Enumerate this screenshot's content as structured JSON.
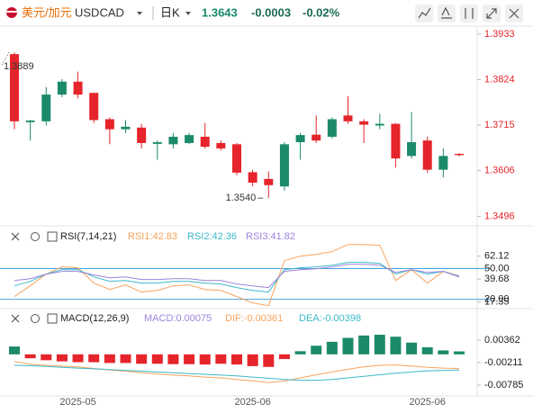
{
  "header": {
    "pair": "美元/加元",
    "symbol": "USDCAD",
    "interval": "日K",
    "price": "1.3643",
    "change": "-0.0003",
    "change_pct": "-0.02%"
  },
  "chart_data": [
    {
      "type": "candlestick",
      "categories": [
        null,
        null,
        null,
        null,
        "2025-05",
        null,
        null,
        null,
        null,
        null,
        null,
        null,
        null,
        null,
        null,
        "2025-06",
        null,
        null,
        null,
        null,
        null,
        null,
        null,
        null,
        null,
        null,
        "2025-06",
        null,
        null
      ],
      "open": [
        1.3885,
        1.3722,
        1.3724,
        1.3788,
        1.3819,
        1.3792,
        1.3729,
        1.3705,
        1.3709,
        1.367,
        1.3669,
        1.3672,
        1.3687,
        1.3672,
        1.3669,
        1.3602,
        1.3586,
        1.3568,
        1.3674,
        1.3692,
        1.3687,
        1.3738,
        1.3724,
        1.3714,
        1.3718,
        1.3641,
        1.3678,
        1.3608,
        1.3646
      ],
      "high": [
        1.3889,
        1.3727,
        1.3806,
        1.3825,
        1.3843,
        1.3793,
        1.3733,
        1.3727,
        1.3718,
        1.3678,
        1.3696,
        1.3696,
        1.372,
        1.3678,
        1.3672,
        1.3608,
        1.3604,
        1.3674,
        1.3696,
        1.3738,
        1.3733,
        1.3784,
        1.3729,
        1.3742,
        1.372,
        1.3746,
        1.3687,
        1.3659,
        1.3648
      ],
      "low": [
        1.3705,
        1.3678,
        1.3714,
        1.3782,
        1.3779,
        1.372,
        1.3669,
        1.3696,
        1.3659,
        1.3632,
        1.3659,
        1.3669,
        1.3659,
        1.3654,
        1.3595,
        1.3568,
        1.354,
        1.3558,
        1.3632,
        1.3672,
        1.3683,
        1.3718,
        1.3672,
        1.3705,
        1.3613,
        1.3635,
        1.3601,
        1.359,
        1.364
      ],
      "close": [
        1.3724,
        1.3726,
        1.3788,
        1.3819,
        1.3788,
        1.3727,
        1.3705,
        1.3711,
        1.3672,
        1.3674,
        1.3687,
        1.3691,
        1.3663,
        1.3659,
        1.3601,
        1.3577,
        1.3571,
        1.3669,
        1.3691,
        1.3678,
        1.3729,
        1.3724,
        1.3716,
        1.3718,
        1.3635,
        1.3674,
        1.3608,
        1.3641,
        1.3643
      ],
      "up_color": "#1b8a6b",
      "down_color": "#e5242b",
      "ylim": [
        1.348,
        1.395
      ],
      "yticks": [
        1.3933,
        1.3824,
        1.3715,
        1.3606,
        1.3496
      ],
      "max_label": "1.3889",
      "min_label": "1.3540"
    },
    {
      "type": "line",
      "title": "RSI(7,14,21)",
      "series": [
        {
          "name": "RSI1:42.83",
          "color": "#f7a35c",
          "values": [
            22.6,
            33.1,
            44.6,
            51.6,
            50.7,
            35.8,
            29.6,
            34.0,
            27.0,
            28.7,
            33.1,
            34.0,
            29.6,
            28.7,
            22.6,
            16.4,
            13.8,
            57.7,
            62.1,
            63.9,
            66.5,
            73.5,
            73.5,
            72.7,
            38.4,
            48.9,
            35.8,
            47.2,
            42.83
          ]
        },
        {
          "name": "RSI2:42.36",
          "color": "#3cb9c8",
          "values": [
            33.1,
            37.5,
            44.6,
            48.9,
            48.9,
            41.9,
            37.5,
            38.4,
            35.8,
            35.8,
            37.5,
            37.5,
            35.8,
            34.9,
            31.4,
            28.7,
            27.0,
            48.9,
            50.7,
            51.6,
            53.3,
            56.0,
            56.0,
            55.1,
            44.6,
            48.9,
            44.6,
            47.2,
            42.36
          ]
        },
        {
          "name": "RSI3:41.82",
          "color": "#9d84dc",
          "values": [
            38.4,
            40.1,
            44.6,
            47.2,
            47.2,
            43.7,
            41.0,
            41.9,
            39.3,
            39.3,
            40.1,
            40.1,
            38.4,
            38.4,
            34.9,
            33.1,
            31.4,
            47.2,
            48.9,
            49.8,
            51.6,
            54.2,
            54.2,
            53.3,
            46.3,
            48.9,
            46.3,
            47.2,
            41.82
          ]
        }
      ],
      "ylim": [
        10,
        82
      ],
      "yticks": [
        62.12,
        {
          "value": 50,
          "label": "50.00",
          "level": true
        },
        39.68,
        17.35,
        {
          "value": 20,
          "label": "20.00",
          "level": true
        }
      ],
      "level_color": "#4aa3df"
    },
    {
      "type": "macd",
      "title": "MACD(12,26,9)",
      "series": [
        {
          "name": "MACD:0.00075",
          "kind": "bar",
          "color": "#9d84dc",
          "up_color": "#1b8a6b",
          "down_color": "#e5242b",
          "values": [
            0.002,
            -0.001,
            -0.0015,
            -0.0018,
            -0.002,
            -0.002,
            -0.0022,
            -0.0022,
            -0.0024,
            -0.0024,
            -0.0025,
            -0.0025,
            -0.0026,
            -0.0024,
            -0.0026,
            -0.003,
            -0.0032,
            -0.0012,
            0.0008,
            0.0022,
            0.0032,
            0.0042,
            0.0048,
            0.005,
            0.0045,
            0.003,
            0.0018,
            0.001,
            0.00075
          ]
        },
        {
          "name": "DIF:-0.00361",
          "kind": "line",
          "color": "#f7a35c",
          "values": [
            -0.0018,
            -0.0025,
            -0.0028,
            -0.003,
            -0.0032,
            -0.0036,
            -0.004,
            -0.0043,
            -0.0047,
            -0.005,
            -0.0053,
            -0.0055,
            -0.0058,
            -0.006,
            -0.0064,
            -0.0068,
            -0.0072,
            -0.0068,
            -0.006,
            -0.0052,
            -0.0045,
            -0.0038,
            -0.0032,
            -0.0028,
            -0.0027,
            -0.003,
            -0.0033,
            -0.0035,
            -0.00361
          ]
        },
        {
          "name": "DEA:-0.00398",
          "kind": "line",
          "color": "#3cb9c8",
          "values": [
            -0.0028,
            -0.0029,
            -0.0031,
            -0.0033,
            -0.0035,
            -0.0037,
            -0.0039,
            -0.0041,
            -0.0043,
            -0.0045,
            -0.0047,
            -0.0049,
            -0.0051,
            -0.0053,
            -0.0055,
            -0.0058,
            -0.0061,
            -0.0064,
            -0.0066,
            -0.0066,
            -0.0064,
            -0.006,
            -0.0056,
            -0.0052,
            -0.0048,
            -0.0045,
            -0.0042,
            -0.0041,
            -0.00398
          ]
        }
      ],
      "ylim": [
        -0.0106,
        0.0073
      ],
      "yticks": [
        0.00362,
        -0.00211,
        -0.00785
      ]
    }
  ]
}
